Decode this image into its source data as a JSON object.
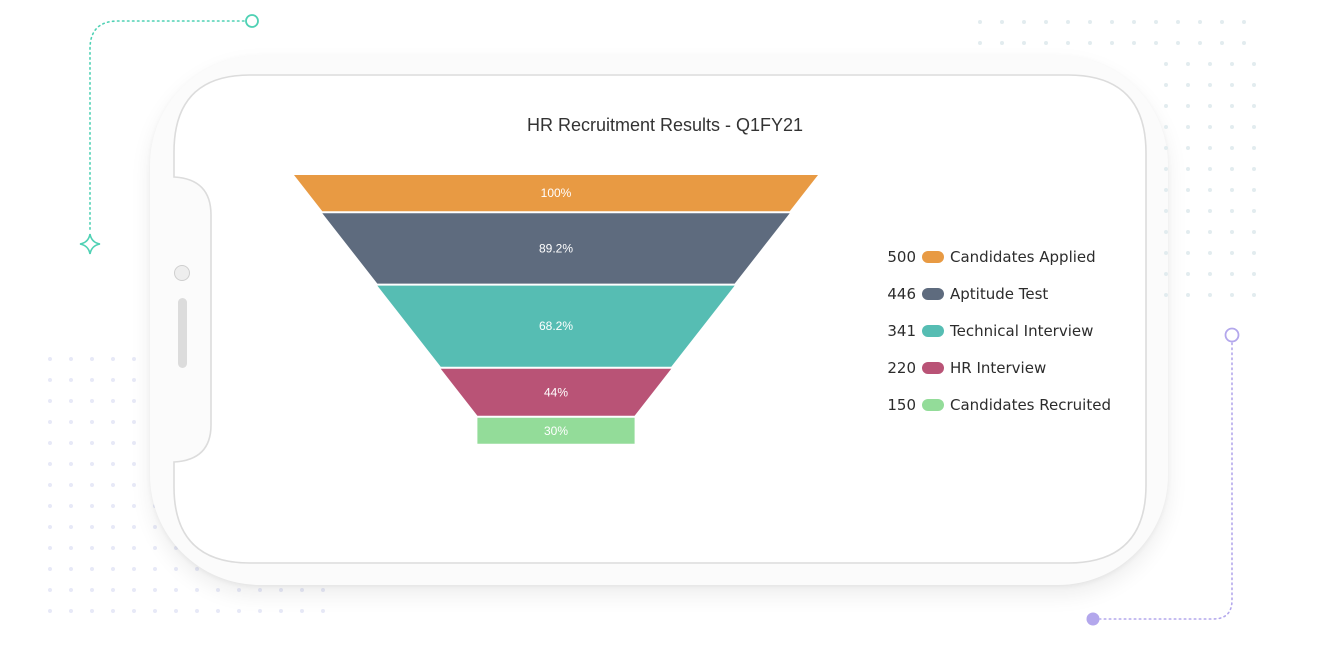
{
  "chart_data": {
    "type": "funnel",
    "title": "HR Recruitment Results - Q1FY21",
    "stages": [
      {
        "name": "Candidates Applied",
        "value": 500,
        "percent_label": "100%",
        "color": "#e89a43"
      },
      {
        "name": "Aptitude Test",
        "value": 446,
        "percent_label": "89.2%",
        "color": "#5e6b7e"
      },
      {
        "name": "Technical Interview",
        "value": 341,
        "percent_label": "68.2%",
        "color": "#56bdb3"
      },
      {
        "name": "HR Interview",
        "value": 220,
        "percent_label": "44%",
        "color": "#b95376"
      },
      {
        "name": "Candidates Recruited",
        "value": 150,
        "percent_label": "30%",
        "color": "#93dc99"
      }
    ],
    "legend_position": "right"
  },
  "colors": {
    "teal_accent": "#4fd1b4",
    "purple_accent": "#b3a7ec"
  }
}
